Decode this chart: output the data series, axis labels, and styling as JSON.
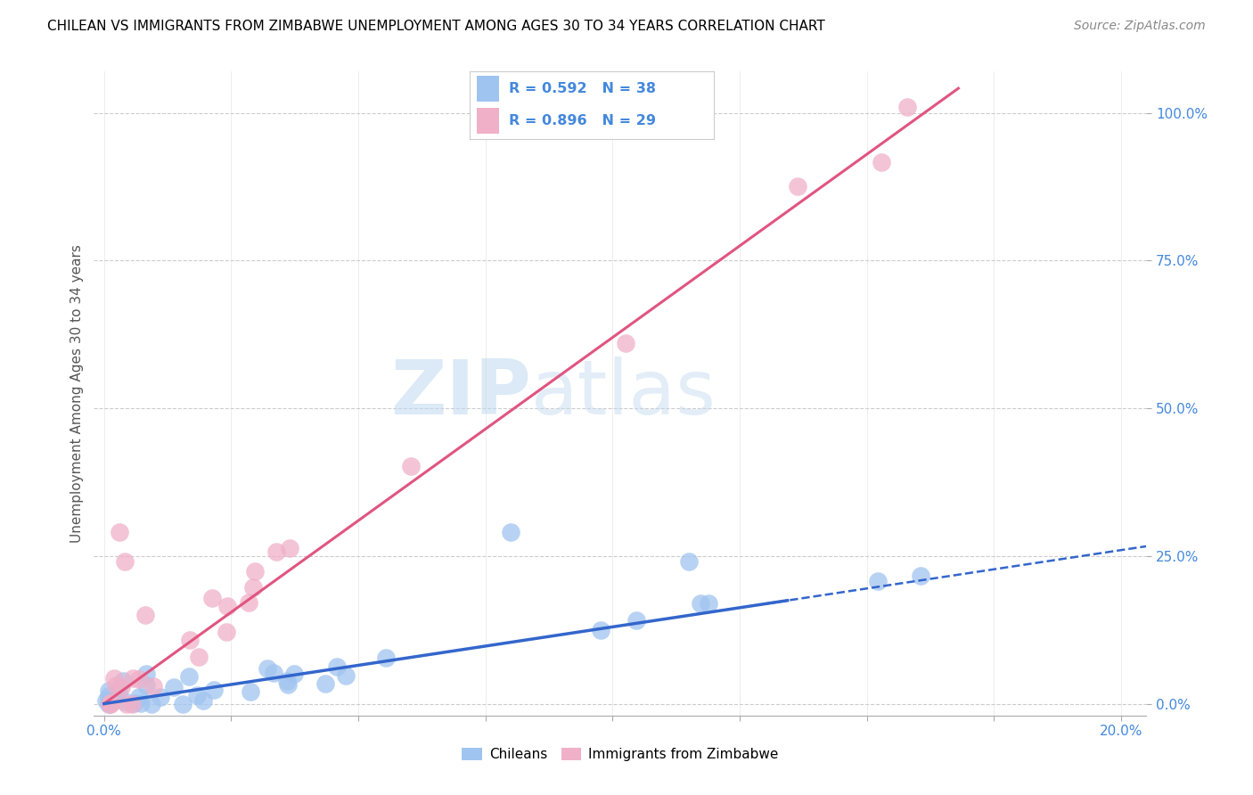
{
  "title": "CHILEAN VS IMMIGRANTS FROM ZIMBABWE UNEMPLOYMENT AMONG AGES 30 TO 34 YEARS CORRELATION CHART",
  "source": "Source: ZipAtlas.com",
  "ylabel": "Unemployment Among Ages 30 to 34 years",
  "xlim": [
    -0.002,
    0.205
  ],
  "ylim": [
    -0.02,
    1.07
  ],
  "chilean_color": "#a0c4f0",
  "zimbabwe_color": "#f0b0c8",
  "chilean_line_color": "#3366cc",
  "zimbabwe_line_color": "#e05580",
  "tick_color": "#4488dd",
  "R_chilean": 0.592,
  "N_chilean": 38,
  "R_zimbabwe": 0.896,
  "N_zimbabwe": 29,
  "watermark_zip": "ZIP",
  "watermark_atlas": "atlas",
  "background_color": "#ffffff",
  "grid_color": "#cccccc",
  "title_fontsize": 11,
  "source_fontsize": 10,
  "ylabel_fontsize": 11,
  "tick_fontsize": 11
}
